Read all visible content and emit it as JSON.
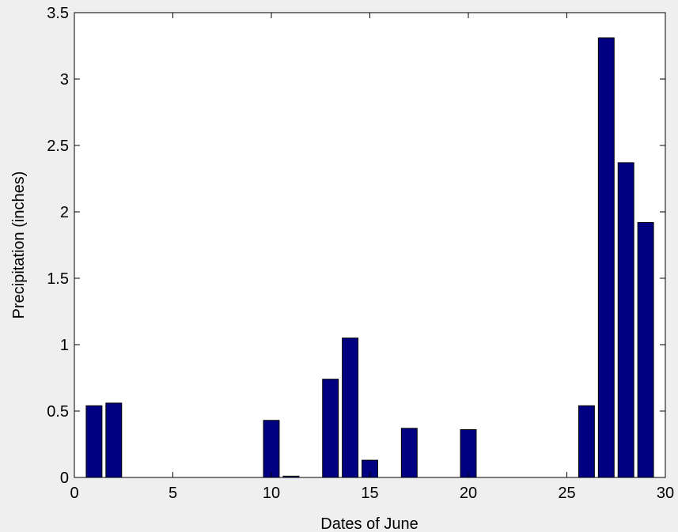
{
  "chart_data": {
    "type": "bar",
    "title": "",
    "xlabel": "Dates of June",
    "ylabel": "Precipitation (inches)",
    "xlim": [
      0,
      30
    ],
    "ylim": [
      0,
      3.5
    ],
    "xticks": [
      0,
      5,
      10,
      15,
      20,
      25,
      30
    ],
    "yticks": [
      0,
      0.5,
      1,
      1.5,
      2,
      2.5,
      3,
      3.5
    ],
    "xtick_labels": [
      "0",
      "5",
      "10",
      "15",
      "20",
      "25",
      "30"
    ],
    "ytick_labels": [
      "0",
      "0.5",
      "1",
      "1.5",
      "2",
      "2.5",
      "3",
      "3.5"
    ],
    "grid": false,
    "bar_color": "#000080",
    "x": [
      1,
      2,
      3,
      4,
      5,
      6,
      7,
      8,
      9,
      10,
      11,
      12,
      13,
      14,
      15,
      16,
      17,
      18,
      19,
      20,
      21,
      22,
      23,
      24,
      25,
      26,
      27,
      28,
      29
    ],
    "values": [
      0.54,
      0.56,
      0,
      0,
      0,
      0,
      0,
      0,
      0,
      0.43,
      0.01,
      0,
      0.74,
      1.05,
      0.13,
      0,
      0.37,
      0,
      0,
      0.36,
      0,
      0,
      0,
      0,
      0,
      0.54,
      3.31,
      2.37,
      1.92
    ]
  }
}
